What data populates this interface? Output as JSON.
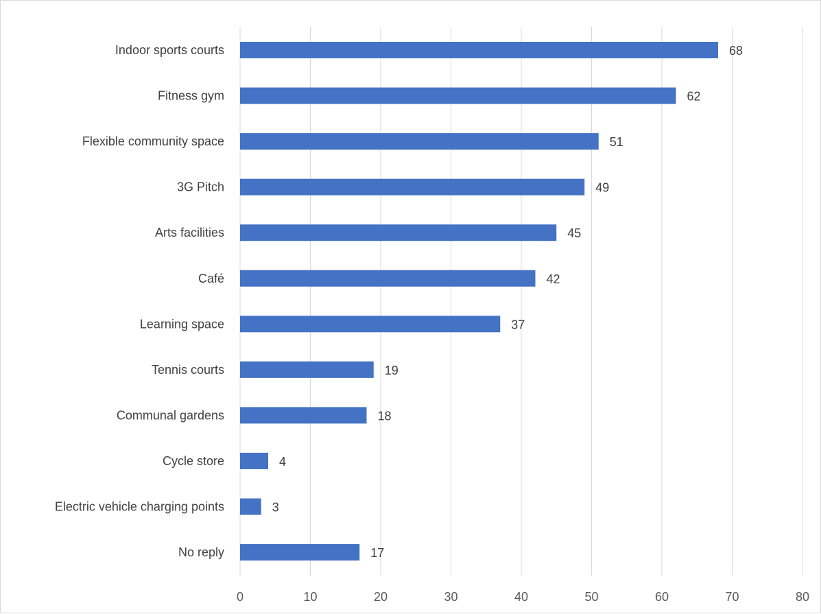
{
  "chart_data": {
    "type": "bar",
    "orientation": "horizontal",
    "categories": [
      "Indoor sports courts",
      "Fitness gym",
      "Flexible community space",
      "3G Pitch",
      "Arts facilities",
      "Café",
      "Learning space",
      "Tennis courts",
      "Communal gardens",
      "Cycle store",
      "Electric vehicle charging points",
      "No reply"
    ],
    "values": [
      68,
      62,
      51,
      49,
      45,
      42,
      37,
      19,
      18,
      4,
      3,
      17
    ],
    "xticks": [
      "0",
      "10",
      "20",
      "30",
      "40",
      "50",
      "60",
      "70",
      "80"
    ],
    "xlim": [
      0,
      80
    ],
    "grid": "vertical",
    "legend": "none",
    "title": "",
    "xlabel": "",
    "ylabel": "",
    "colors": {
      "bar": "#4472c4",
      "grid": "#d9d9d9",
      "text": "#404040",
      "tick_text": "#595959"
    }
  }
}
